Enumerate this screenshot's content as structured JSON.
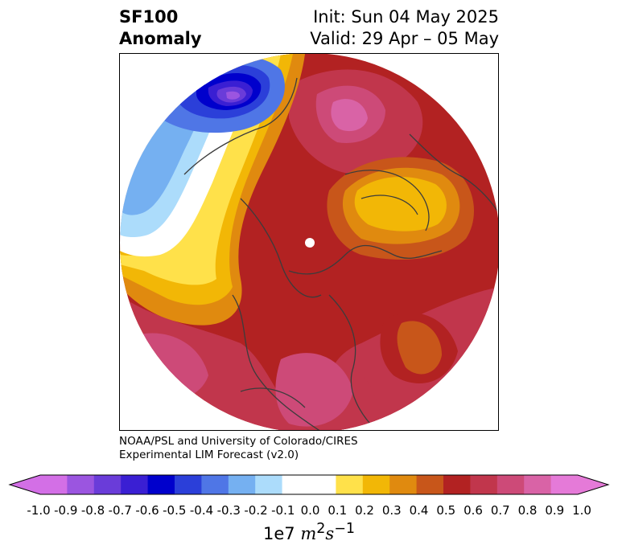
{
  "title": {
    "line1": "SF100",
    "line2": "Anomaly",
    "init": "Init: Sun 04 May 2025",
    "valid": "Valid: 29 Apr – 05 May"
  },
  "credit": {
    "line1": "NOAA/PSL and University of Colorado/CIRES",
    "line2": "Experimental LIM Forecast (v2.0)"
  },
  "colorbar": {
    "ticks": [
      "-1.0",
      "-0.9",
      "-0.8",
      "-0.7",
      "-0.6",
      "-0.5",
      "-0.4",
      "-0.3",
      "-0.2",
      "-0.1",
      "0.0",
      "0.1",
      "0.2",
      "0.3",
      "0.4",
      "0.5",
      "0.6",
      "0.7",
      "0.8",
      "0.9",
      "1.0"
    ],
    "colors": [
      "#d36fe6",
      "#9b55e0",
      "#6a3cd9",
      "#3a1fd3",
      "#0000cc",
      "#2b3fd9",
      "#4f76e6",
      "#75b0f1",
      "#acdcfb",
      "#ffffff",
      "#ffffff",
      "#ffe14a",
      "#f2b706",
      "#e08a0f",
      "#c8561a",
      "#b22222",
      "#c1364c",
      "#cd4a78",
      "#d963a6",
      "#e57ad8"
    ],
    "under_color": "#d36fe6",
    "over_color": "#e57ad8",
    "unit_scale": "1e7",
    "unit_symbol": "m",
    "unit_exp1": "2",
    "unit_s": "s",
    "unit_exp2": "−1"
  }
}
